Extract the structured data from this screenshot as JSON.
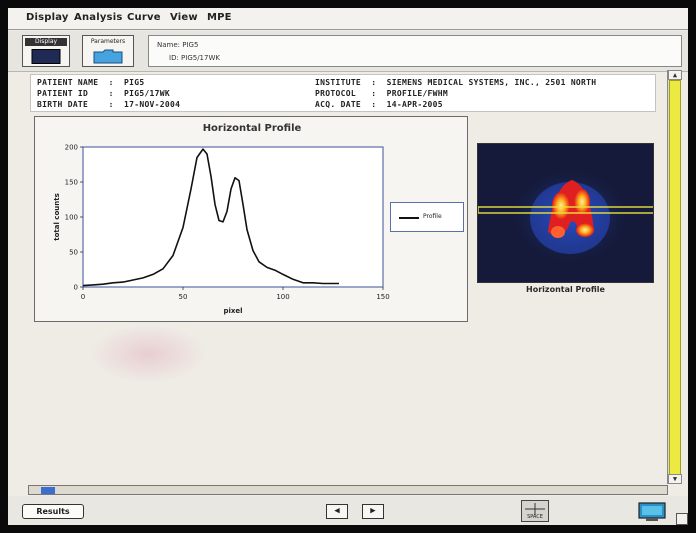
{
  "menu": {
    "items": [
      "Display",
      "Analysis",
      "Curve",
      "View",
      "MPE"
    ]
  },
  "toolbar": {
    "display_label": "Display",
    "parameters_label": "Parameters",
    "name_line": "Name: PIG5",
    "id_line": "ID: PIG5/17WK"
  },
  "header": {
    "patient_name": "PATIENT NAME  :  PIG5",
    "patient_id": "PATIENT ID    :  PIG5/17WK",
    "birth_date": "BIRTH DATE    :  17-NOV-2004",
    "institute": "INSTITUTE  :  SIEMENS MEDICAL SYSTEMS, INC., 2501 NORTH",
    "protocol": "PROTOCOL   :  PROFILE/FWHM",
    "acq_date": "ACQ. DATE  :  14-APR-2005"
  },
  "chart_data": {
    "type": "line",
    "title": "Horizontal Profile",
    "xlabel": "pixel",
    "ylabel": "total counts",
    "xlim": [
      0,
      150
    ],
    "ylim": [
      0,
      200
    ],
    "x_ticks": [
      0,
      50,
      100,
      150
    ],
    "y_ticks": [
      0,
      50,
      100,
      150,
      200
    ],
    "grid": false,
    "legend_position": "right",
    "series": [
      {
        "name": "Profile",
        "color": "#111111",
        "x": [
          0,
          5,
          10,
          15,
          20,
          25,
          30,
          35,
          40,
          45,
          50,
          54,
          57,
          60,
          62,
          64,
          66,
          68,
          70,
          72,
          74,
          76,
          78,
          80,
          82,
          85,
          88,
          92,
          96,
          100,
          105,
          110,
          115,
          120,
          125,
          128
        ],
        "y": [
          2,
          3,
          4,
          6,
          7,
          10,
          13,
          18,
          26,
          45,
          85,
          140,
          185,
          197,
          190,
          158,
          118,
          95,
          93,
          108,
          140,
          156,
          152,
          118,
          82,
          52,
          36,
          28,
          24,
          18,
          11,
          6,
          6,
          5,
          5,
          5
        ]
      }
    ]
  },
  "image_panel": {
    "caption": "Horizontal Profile"
  },
  "bottombar": {
    "results_label": "Results",
    "prev_arrow": "◀",
    "next_arrow": "▶",
    "space_label": "SPACE"
  },
  "colors": {
    "plot_frame": "#5b6fa8",
    "scrollbar_thumb": "#ece940",
    "profile_line_overlay": "#e8e23a"
  }
}
